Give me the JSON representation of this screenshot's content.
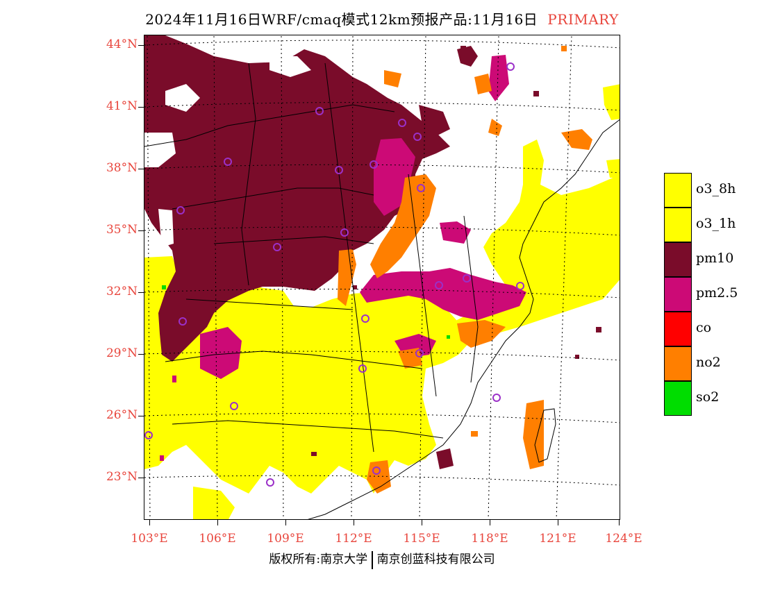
{
  "title": {
    "text": "2024年11月16日WRF/cmaq模式12km预报产品:11月16日",
    "tag": "PRIMARY"
  },
  "latitude_labels": [
    "44°N",
    "41°N",
    "38°N",
    "35°N",
    "32°N",
    "29°N",
    "26°N",
    "23°N"
  ],
  "longitude_labels": [
    "103°E",
    "106°E",
    "109°E",
    "112°E",
    "115°E",
    "118°E",
    "121°E",
    "124°E"
  ],
  "legend": [
    {
      "label": "o3_8h",
      "color": "#ffff00"
    },
    {
      "label": "o3_1h",
      "color": "#ffff00"
    },
    {
      "label": "pm10",
      "color": "#7a0c2a"
    },
    {
      "label": "pm2.5",
      "color": "#cc0a76"
    },
    {
      "label": "co",
      "color": "#ff0000"
    },
    {
      "label": "no2",
      "color": "#ff7f00"
    },
    {
      "label": "so2",
      "color": "#00dd00"
    }
  ],
  "footer": {
    "left": "版权所有:南京大学",
    "right": "南京创蓝科技有限公司"
  },
  "colors": {
    "axis_label": "#e8453c",
    "station_marker": "#9b30c8"
  }
}
